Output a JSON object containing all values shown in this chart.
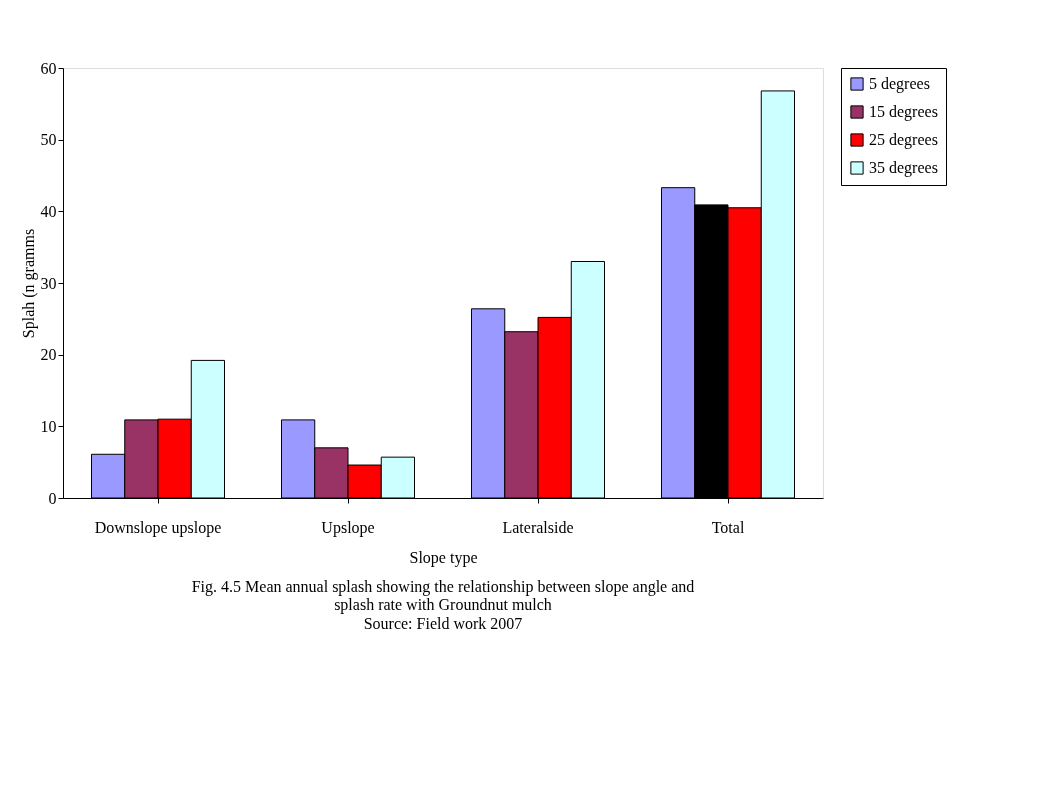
{
  "chart_data": {
    "type": "bar",
    "title": "Fig. 4.5 Mean annual splash showing the relationship between slope angle and splash rate with Groundnut mulch",
    "xlabel": "Slope type",
    "ylabel": "Splah (n gramms",
    "annotations": [
      "Source: Field work 2007"
    ],
    "categories": [
      "Downslope upslope",
      "Upslope",
      "Lateralside",
      "Total"
    ],
    "series": [
      {
        "name": "5 degrees",
        "color": "#9999ff",
        "values": [
          6.1,
          10.9,
          26.4,
          43.3
        ]
      },
      {
        "name": "15 degrees",
        "color": "#993366",
        "colors": [
          "#993366",
          "#993366",
          "#993366",
          "#000000"
        ],
        "values": [
          10.9,
          7.0,
          23.2,
          40.9
        ]
      },
      {
        "name": "25 degrees",
        "color": "#ff0000",
        "values": [
          11.0,
          4.6,
          25.2,
          40.5
        ]
      },
      {
        "name": "35 degrees",
        "color": "#ccffff",
        "values": [
          19.2,
          5.7,
          33.0,
          56.8
        ]
      }
    ],
    "ylim": [
      0,
      60
    ],
    "yticks": [
      0,
      10,
      20,
      30,
      40,
      50,
      60
    ],
    "grid": false,
    "legend": "right"
  }
}
